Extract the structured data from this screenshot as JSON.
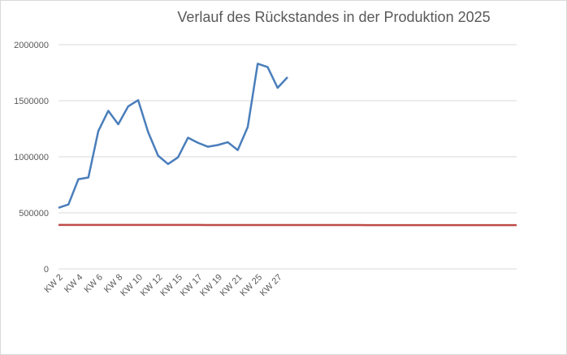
{
  "chart_data": {
    "type": "line",
    "title": "Verlauf des Rückstandes in der Produktion 2025",
    "categories": [
      "KW 2",
      null,
      "KW 4",
      null,
      "KW 6",
      null,
      "KW 8",
      null,
      "KW 10",
      null,
      "KW 12",
      null,
      "KW 15",
      null,
      "KW 17",
      null,
      "KW 19",
      null,
      "KW 21",
      null,
      "KW 25",
      null,
      "KW 27",
      null,
      null,
      null,
      null,
      null,
      null,
      null,
      null,
      null,
      null,
      null,
      null,
      null,
      null,
      null,
      null,
      null,
      null,
      null,
      null,
      null,
      null,
      null,
      null
    ],
    "series": [
      {
        "color": "#4a7ebb",
        "values": [
          545000,
          575000,
          800000,
          815000,
          1230000,
          1410000,
          1290000,
          1450000,
          1505000,
          1220000,
          1010000,
          935000,
          995000,
          1170000,
          1125000,
          1090000,
          1105000,
          1130000,
          1060000,
          1265000,
          1830000,
          1800000,
          1615000,
          1710000,
          null,
          null,
          null,
          null,
          null,
          null,
          null,
          null,
          null,
          null,
          null,
          null,
          null,
          null,
          null,
          null,
          null,
          null,
          null,
          null,
          null,
          null,
          null
        ]
      },
      {
        "color": "#be4b48",
        "values": [
          392000,
          392000,
          392000,
          392000,
          392000,
          392000,
          392000,
          392000,
          392000,
          392000,
          392000,
          392000,
          392000,
          392000,
          392000,
          391000,
          391000,
          391000,
          391000,
          391000,
          391000,
          391000,
          391000,
          391000,
          391000,
          391000,
          391000,
          391000,
          391000,
          391000,
          391000,
          390000,
          390000,
          390000,
          390000,
          390000,
          390000,
          390000,
          390000,
          390000,
          390000,
          390000,
          390000,
          390000,
          390000,
          390000,
          390000
        ]
      }
    ],
    "ylim": [
      0,
      2000000
    ],
    "yticks": [
      0,
      500000,
      1000000,
      1500000,
      2000000
    ],
    "grid": true
  }
}
